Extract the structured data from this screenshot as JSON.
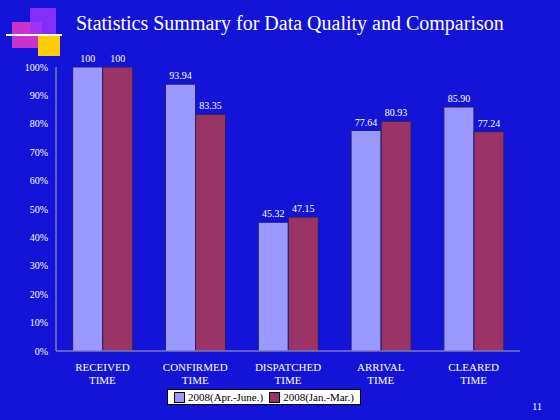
{
  "chart_data": {
    "type": "bar",
    "title": "Statistics Summary for Data Quality and Comparison",
    "categories": [
      "RECEIVED TIME",
      "CONFIRMED TIME",
      "DISPATCHED TIME",
      "ARRIVAL TIME",
      "CLEARED TIME"
    ],
    "series": [
      {
        "name": "2008(Apr.-June.)",
        "color": "#9999ff",
        "values": [
          100,
          93.94,
          45.32,
          77.64,
          85.9
        ],
        "value_labels": [
          "100",
          "93.94",
          "45.32",
          "77.64",
          "85.90"
        ]
      },
      {
        "name": "2008(Jan.-Mar.)",
        "color": "#993366",
        "values": [
          100,
          83.35,
          47.15,
          80.93,
          77.24
        ],
        "value_labels": [
          "100",
          "83.35",
          "47.15",
          "80.93",
          "77.24"
        ]
      }
    ],
    "ylim": [
      0,
      100
    ],
    "yticks": [
      {
        "value": 0,
        "label": "0%"
      },
      {
        "value": 10,
        "label": "10%"
      },
      {
        "value": 20,
        "label": "20%"
      },
      {
        "value": 30,
        "label": "30%"
      },
      {
        "value": 40,
        "label": "40%"
      },
      {
        "value": 50,
        "label": "50%"
      },
      {
        "value": 60,
        "label": "60%"
      },
      {
        "value": 70,
        "label": "70%"
      },
      {
        "value": 80,
        "label": "80%"
      },
      {
        "value": 90,
        "label": "90%"
      },
      {
        "value": 100,
        "label": "100%"
      }
    ],
    "grid": false,
    "legend": "bottom",
    "data_labels": true,
    "annotations": [
      "11"
    ]
  }
}
